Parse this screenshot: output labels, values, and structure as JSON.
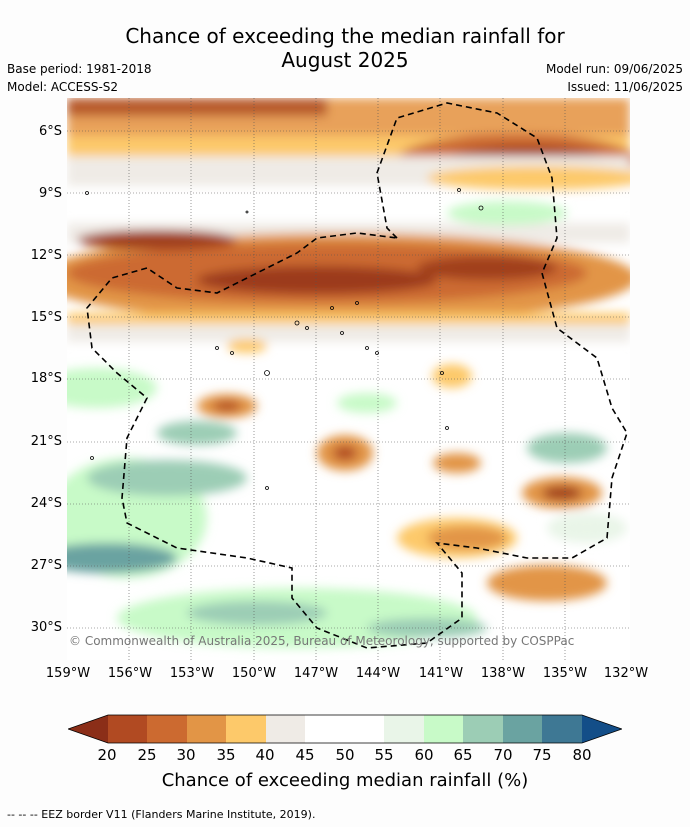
{
  "title": "Chance of exceeding the median rainfall for August 2025",
  "meta": {
    "base_period": "Base period: 1981-2018",
    "model": "Model: ACCESS-S2",
    "model_run": "Model run: 09/06/2025",
    "issued": "Issued: 11/06/2025"
  },
  "lat_labels": [
    "6°S",
    "9°S",
    "12°S",
    "15°S",
    "18°S",
    "21°S",
    "24°S",
    "27°S",
    "30°S"
  ],
  "lon_labels": [
    "159°W",
    "156°W",
    "153°W",
    "150°W",
    "147°W",
    "144°W",
    "141°W",
    "138°W",
    "135°W",
    "132°W"
  ],
  "credit": "© Commonwealth of Australia 2025, Bureau of Meteorology, supported by COSPPac",
  "colorbar": {
    "labels": [
      "20",
      "25",
      "30",
      "35",
      "40",
      "45",
      "50",
      "55",
      "60",
      "65",
      "70",
      "75",
      "80"
    ],
    "colors": [
      "#8b2e18",
      "#b14a22",
      "#cc6a30",
      "#e29546",
      "#fdc96a",
      "#efebe6",
      "#ffffff",
      "#ffffff",
      "#e9f5e8",
      "#c8fac8",
      "#9ccdb5",
      "#6aa3a1",
      "#3e7894",
      "#134e88"
    ],
    "title": "Chance of exceeding median rainfall (%)"
  },
  "footer": "--  --  -- EEZ border V11 (Flanders Marine Institute, 2019)."
}
